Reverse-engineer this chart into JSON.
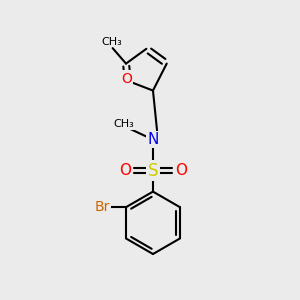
{
  "bg_color": "#ebebeb",
  "atom_colors": {
    "C": "#000000",
    "N": "#0000ee",
    "O": "#ff0000",
    "S": "#cccc00",
    "Br": "#cc6600"
  },
  "bond_color": "#000000",
  "bond_width": 1.5,
  "font_size_atom": 10,
  "font_size_small": 8
}
